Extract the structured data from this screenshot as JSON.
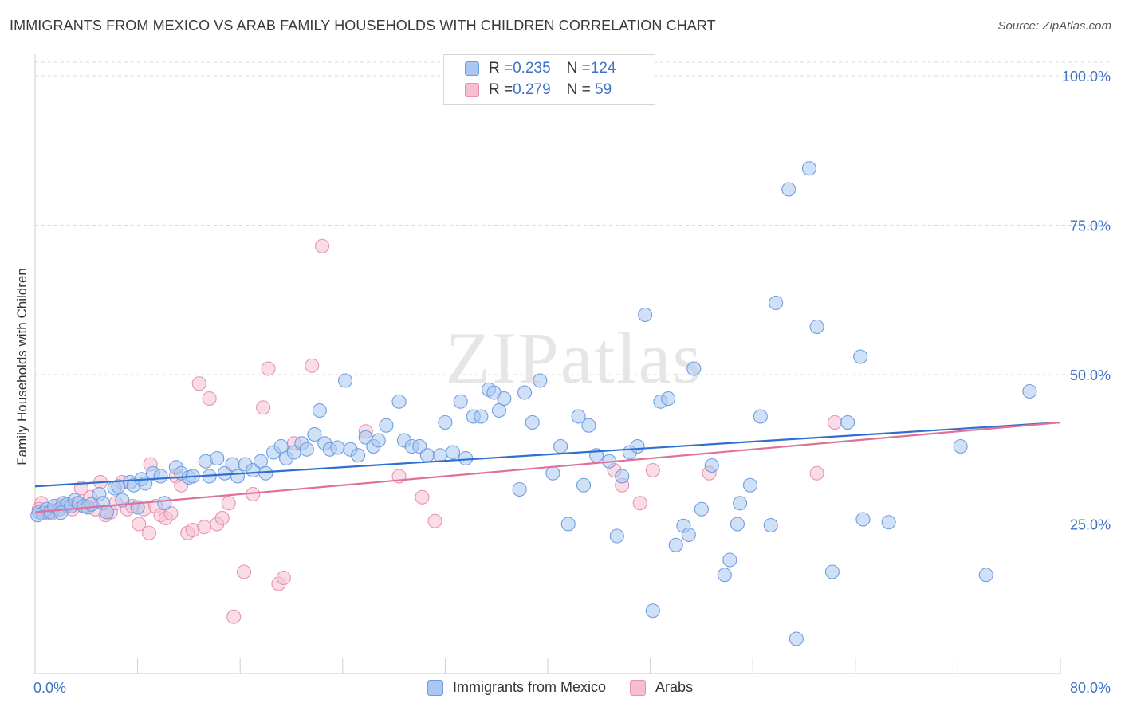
{
  "title": "IMMIGRANTS FROM MEXICO VS ARAB FAMILY HOUSEHOLDS WITH CHILDREN CORRELATION CHART",
  "source": "Source: ZipAtlas.com",
  "watermark": "ZIPatlas",
  "colors": {
    "blue_fill": "#a9c7f0",
    "blue_stroke": "#6f9de0",
    "blue_line": "#2f6fcf",
    "pink_fill": "#f5bfd1",
    "pink_stroke": "#e892b0",
    "pink_line": "#e0709a",
    "tick_label": "#3f73c7",
    "grid": "#d9d9d9"
  },
  "legend": {
    "rows": [
      {
        "r_label": "R = ",
        "r_value": "0.235",
        "n_label": "N = ",
        "n_value": "124",
        "color": "blue"
      },
      {
        "r_label": "R = ",
        "r_value": "0.279",
        "n_label": "N = ",
        "n_value": " 59",
        "color": "pink"
      }
    ]
  },
  "bottom_legend": [
    {
      "label": "Immigrants from Mexico",
      "color": "blue"
    },
    {
      "label": "Arabs",
      "color": "pink"
    }
  ],
  "chart_data": {
    "type": "scatter",
    "title": "IMMIGRANTS FROM MEXICO VS ARAB FAMILY HOUSEHOLDS WITH CHILDREN CORRELATION CHART",
    "xlabel": "",
    "ylabel": "Family Households with Children",
    "xlim": [
      0,
      80
    ],
    "ylim": [
      0,
      100
    ],
    "x_tick_labels": [
      "0.0%",
      "80.0%"
    ],
    "y_tick_labels": [
      "25.0%",
      "50.0%",
      "75.0%",
      "100.0%"
    ],
    "y_ticks": [
      25,
      50,
      75,
      100
    ],
    "grid": true,
    "legend_position": "top-center",
    "series": [
      {
        "name": "Immigrants from Mexico",
        "color": "blue",
        "trend": {
          "x": [
            0,
            80
          ],
          "y": [
            31.3,
            42.0
          ]
        },
        "points": [
          [
            0.3,
            27.0
          ],
          [
            0.6,
            26.8
          ],
          [
            0.9,
            27.5
          ],
          [
            1.2,
            27.0
          ],
          [
            1.5,
            28.0
          ],
          [
            1.9,
            27.5
          ],
          [
            2.2,
            28.5
          ],
          [
            2.5,
            28.3
          ],
          [
            2.8,
            28.0
          ],
          [
            3.1,
            29.0
          ],
          [
            3.4,
            28.5
          ],
          [
            3.8,
            28.0
          ],
          [
            4.1,
            27.8
          ],
          [
            4.4,
            28.3
          ],
          [
            5.0,
            30.0
          ],
          [
            5.3,
            28.5
          ],
          [
            5.6,
            27.0
          ],
          [
            6.2,
            31.0
          ],
          [
            6.5,
            31.3
          ],
          [
            6.8,
            29.0
          ],
          [
            7.4,
            32.0
          ],
          [
            7.7,
            31.5
          ],
          [
            8.0,
            27.8
          ],
          [
            8.3,
            32.5
          ],
          [
            8.6,
            31.8
          ],
          [
            9.2,
            33.5
          ],
          [
            9.8,
            33.0
          ],
          [
            10.1,
            28.5
          ],
          [
            11.0,
            34.5
          ],
          [
            11.4,
            33.5
          ],
          [
            12.0,
            32.8
          ],
          [
            12.3,
            33.0
          ],
          [
            13.3,
            35.5
          ],
          [
            13.6,
            33.0
          ],
          [
            14.2,
            36.0
          ],
          [
            14.8,
            33.5
          ],
          [
            15.4,
            35.0
          ],
          [
            15.8,
            33.0
          ],
          [
            16.4,
            35.0
          ],
          [
            17.0,
            34.0
          ],
          [
            17.6,
            35.5
          ],
          [
            18.0,
            33.5
          ],
          [
            18.6,
            37.0
          ],
          [
            19.2,
            38.0
          ],
          [
            19.6,
            36.0
          ],
          [
            20.2,
            37.0
          ],
          [
            20.8,
            38.5
          ],
          [
            21.2,
            37.5
          ],
          [
            21.8,
            40.0
          ],
          [
            22.2,
            44.0
          ],
          [
            22.6,
            38.5
          ],
          [
            23.0,
            37.5
          ],
          [
            23.6,
            37.8
          ],
          [
            24.2,
            49.0
          ],
          [
            24.6,
            37.5
          ],
          [
            25.2,
            36.5
          ],
          [
            25.8,
            39.5
          ],
          [
            26.4,
            38.0
          ],
          [
            26.8,
            39.0
          ],
          [
            27.4,
            41.5
          ],
          [
            28.4,
            45.5
          ],
          [
            28.8,
            39.0
          ],
          [
            29.4,
            38.0
          ],
          [
            30.0,
            38.0
          ],
          [
            30.6,
            36.5
          ],
          [
            31.6,
            36.5
          ],
          [
            32.0,
            42.0
          ],
          [
            32.6,
            37.0
          ],
          [
            33.2,
            45.5
          ],
          [
            33.6,
            36.0
          ],
          [
            34.2,
            43.0
          ],
          [
            34.8,
            43.0
          ],
          [
            35.4,
            47.5
          ],
          [
            35.8,
            47.0
          ],
          [
            36.2,
            44.0
          ],
          [
            36.6,
            46.0
          ],
          [
            38.2,
            47.0
          ],
          [
            38.8,
            42.0
          ],
          [
            39.4,
            49.0
          ],
          [
            37.8,
            30.8
          ],
          [
            40.4,
            33.5
          ],
          [
            41.0,
            38.0
          ],
          [
            41.6,
            25.0
          ],
          [
            42.4,
            43.0
          ],
          [
            42.8,
            31.5
          ],
          [
            43.2,
            41.5
          ],
          [
            43.8,
            36.5
          ],
          [
            44.8,
            35.5
          ],
          [
            45.4,
            23.0
          ],
          [
            45.8,
            33.0
          ],
          [
            46.4,
            37.0
          ],
          [
            47.0,
            38.0
          ],
          [
            47.6,
            60.0
          ],
          [
            48.2,
            10.5
          ],
          [
            48.8,
            45.5
          ],
          [
            49.4,
            46.0
          ],
          [
            50.0,
            21.5
          ],
          [
            50.6,
            24.7
          ],
          [
            51.0,
            23.2
          ],
          [
            51.4,
            51.0
          ],
          [
            52.0,
            27.5
          ],
          [
            52.8,
            34.8
          ],
          [
            53.8,
            16.5
          ],
          [
            54.2,
            19.0
          ],
          [
            54.8,
            25.0
          ],
          [
            55.0,
            28.5
          ],
          [
            55.8,
            31.5
          ],
          [
            56.6,
            43.0
          ],
          [
            57.4,
            24.8
          ],
          [
            57.8,
            62.0
          ],
          [
            58.8,
            81.0
          ],
          [
            59.4,
            5.8
          ],
          [
            60.4,
            84.5
          ],
          [
            61.0,
            58.0
          ],
          [
            62.2,
            17.0
          ],
          [
            63.4,
            42.0
          ],
          [
            64.4,
            53.0
          ],
          [
            64.6,
            25.8
          ],
          [
            66.6,
            25.3
          ],
          [
            72.2,
            38.0
          ],
          [
            74.2,
            16.5
          ],
          [
            77.6,
            47.2
          ],
          [
            0.2,
            26.5
          ],
          [
            2.0,
            26.9
          ]
        ]
      },
      {
        "name": "Arabs",
        "color": "pink",
        "trend": {
          "x": [
            0,
            80
          ],
          "y": [
            27.0,
            42.0
          ]
        },
        "points": [
          [
            0.5,
            28.5
          ],
          [
            0.9,
            27.0
          ],
          [
            1.3,
            26.8
          ],
          [
            1.7,
            27.8
          ],
          [
            2.1,
            28.0
          ],
          [
            2.5,
            28.0
          ],
          [
            2.9,
            27.5
          ],
          [
            3.3,
            28.5
          ],
          [
            3.8,
            28.0
          ],
          [
            4.3,
            29.5
          ],
          [
            4.7,
            27.5
          ],
          [
            5.1,
            32.0
          ],
          [
            5.5,
            26.5
          ],
          [
            5.9,
            27.0
          ],
          [
            6.3,
            28.5
          ],
          [
            6.8,
            32.0
          ],
          [
            7.2,
            27.5
          ],
          [
            7.6,
            28.0
          ],
          [
            8.1,
            25.0
          ],
          [
            8.5,
            27.5
          ],
          [
            8.9,
            23.5
          ],
          [
            9.4,
            28.0
          ],
          [
            9.8,
            26.5
          ],
          [
            10.2,
            26.0
          ],
          [
            10.6,
            26.8
          ],
          [
            11.0,
            33.0
          ],
          [
            11.4,
            31.5
          ],
          [
            11.9,
            23.5
          ],
          [
            12.3,
            24.0
          ],
          [
            12.8,
            48.5
          ],
          [
            13.2,
            24.5
          ],
          [
            13.6,
            46.0
          ],
          [
            14.2,
            25.0
          ],
          [
            14.6,
            26.0
          ],
          [
            15.1,
            28.5
          ],
          [
            15.5,
            9.5
          ],
          [
            16.3,
            17.0
          ],
          [
            17.0,
            30.0
          ],
          [
            17.8,
            44.5
          ],
          [
            18.2,
            51.0
          ],
          [
            19.0,
            15.0
          ],
          [
            19.4,
            16.0
          ],
          [
            20.2,
            38.5
          ],
          [
            21.6,
            51.5
          ],
          [
            22.4,
            71.5
          ],
          [
            25.8,
            40.5
          ],
          [
            28.4,
            33.0
          ],
          [
            30.2,
            29.5
          ],
          [
            31.2,
            25.5
          ],
          [
            45.2,
            34.0
          ],
          [
            45.8,
            31.5
          ],
          [
            47.2,
            28.5
          ],
          [
            48.2,
            34.0
          ],
          [
            52.6,
            33.5
          ],
          [
            61.0,
            33.5
          ],
          [
            62.4,
            42.0
          ],
          [
            9.0,
            35.0
          ],
          [
            3.6,
            31.0
          ],
          [
            0.3,
            27.5
          ]
        ]
      }
    ]
  }
}
